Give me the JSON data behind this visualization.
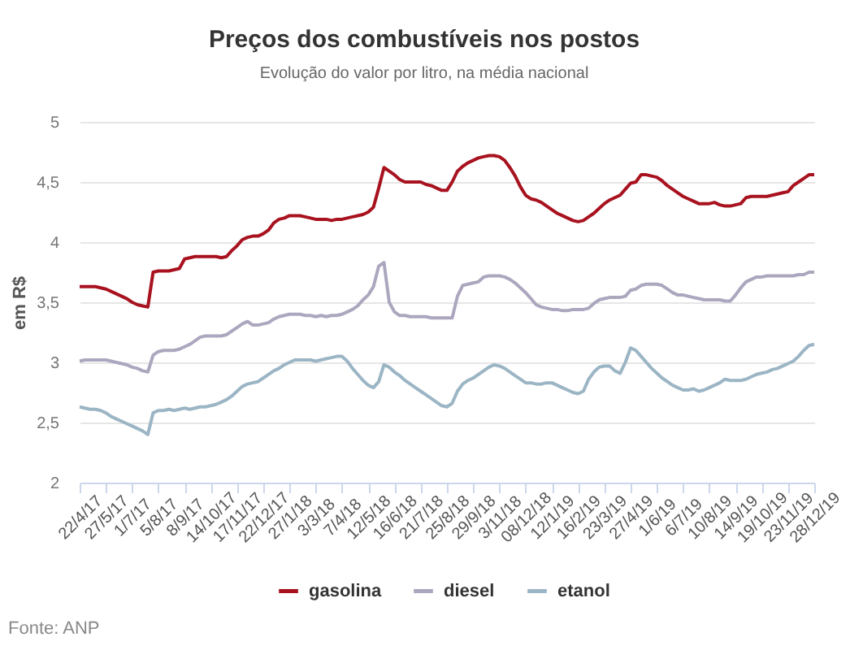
{
  "chart_data": {
    "type": "line",
    "title": "Preços dos combustíveis nos postos",
    "subtitle": "Evolução do valor por litro, na média nacional",
    "ylabel": "em R$",
    "annotations": [
      "Fonte: ANP"
    ],
    "categories": [
      "22/4/17",
      null,
      null,
      null,
      null,
      "27/5/17",
      null,
      null,
      null,
      null,
      "1/7/17",
      null,
      null,
      null,
      null,
      "5/8/17",
      null,
      null,
      null,
      null,
      "8/9/17",
      null,
      null,
      null,
      null,
      "14/10/17",
      null,
      null,
      null,
      null,
      "17/11/17",
      null,
      null,
      null,
      null,
      "22/12/17",
      null,
      null,
      null,
      null,
      "27/1/18",
      null,
      null,
      null,
      null,
      "3/3/18",
      null,
      null,
      null,
      null,
      "7/4/18",
      null,
      null,
      null,
      null,
      "12/5/18",
      null,
      null,
      null,
      null,
      "16/6/18",
      null,
      null,
      null,
      null,
      "21/7/18",
      null,
      null,
      null,
      null,
      "25/8/18",
      null,
      null,
      null,
      null,
      "29/9/18",
      null,
      null,
      null,
      null,
      "3/11/18",
      null,
      null,
      null,
      null,
      "08/12/18",
      null,
      null,
      null,
      null,
      "12/1/19",
      null,
      null,
      null,
      null,
      "16/2/19",
      null,
      null,
      null,
      null,
      "23/3/19",
      null,
      null,
      null,
      null,
      "27/4/19",
      null,
      null,
      null,
      null,
      "1/6/19",
      null,
      null,
      null,
      null,
      "6/7/19",
      null,
      null,
      null,
      null,
      "10/8/19",
      null,
      null,
      null,
      null,
      "14/9/19",
      null,
      null,
      null,
      null,
      "19/10/19",
      null,
      null,
      null,
      null,
      "23/11/19",
      null,
      null,
      null,
      null,
      "28/12/19"
    ],
    "series": [
      {
        "name": "gasolina",
        "color": "#a8121f",
        "values": [
          3.63,
          3.63,
          3.63,
          3.63,
          3.62,
          3.61,
          3.59,
          3.57,
          3.55,
          3.53,
          3.5,
          3.48,
          3.47,
          3.46,
          3.75,
          3.76,
          3.76,
          3.76,
          3.77,
          3.78,
          3.86,
          3.87,
          3.88,
          3.88,
          3.88,
          3.88,
          3.88,
          3.87,
          3.88,
          3.93,
          3.97,
          4.02,
          4.04,
          4.05,
          4.05,
          4.07,
          4.1,
          4.16,
          4.19,
          4.2,
          4.22,
          4.22,
          4.22,
          4.21,
          4.2,
          4.19,
          4.19,
          4.19,
          4.18,
          4.19,
          4.19,
          4.2,
          4.21,
          4.22,
          4.23,
          4.25,
          4.29,
          4.45,
          4.62,
          4.59,
          4.56,
          4.52,
          4.5,
          4.5,
          4.5,
          4.5,
          4.48,
          4.47,
          4.45,
          4.43,
          4.43,
          4.5,
          4.59,
          4.63,
          4.66,
          4.68,
          4.7,
          4.71,
          4.72,
          4.72,
          4.71,
          4.68,
          4.62,
          4.55,
          4.46,
          4.39,
          4.36,
          4.35,
          4.33,
          4.3,
          4.27,
          4.24,
          4.22,
          4.2,
          4.18,
          4.17,
          4.18,
          4.21,
          4.24,
          4.28,
          4.32,
          4.35,
          4.37,
          4.39,
          4.44,
          4.49,
          4.5,
          4.56,
          4.56,
          4.55,
          4.54,
          4.51,
          4.47,
          4.44,
          4.41,
          4.38,
          4.36,
          4.34,
          4.32,
          4.32,
          4.32,
          4.33,
          4.31,
          4.3,
          4.3,
          4.31,
          4.32,
          4.37,
          4.38,
          4.38,
          4.38,
          4.38,
          4.39,
          4.4,
          4.41,
          4.42,
          4.47,
          4.5,
          4.53,
          4.56,
          4.56
        ]
      },
      {
        "name": "diesel",
        "color": "#aca6be",
        "values": [
          3.01,
          3.02,
          3.02,
          3.02,
          3.02,
          3.02,
          3.01,
          3.0,
          2.99,
          2.98,
          2.96,
          2.95,
          2.93,
          2.92,
          3.06,
          3.09,
          3.1,
          3.1,
          3.1,
          3.11,
          3.13,
          3.15,
          3.18,
          3.21,
          3.22,
          3.22,
          3.22,
          3.22,
          3.23,
          3.26,
          3.29,
          3.32,
          3.34,
          3.31,
          3.31,
          3.32,
          3.33,
          3.36,
          3.38,
          3.39,
          3.4,
          3.4,
          3.4,
          3.39,
          3.39,
          3.38,
          3.39,
          3.38,
          3.39,
          3.39,
          3.4,
          3.42,
          3.44,
          3.47,
          3.52,
          3.56,
          3.63,
          3.8,
          3.83,
          3.5,
          3.42,
          3.39,
          3.39,
          3.38,
          3.38,
          3.38,
          3.38,
          3.37,
          3.37,
          3.37,
          3.37,
          3.37,
          3.55,
          3.64,
          3.65,
          3.66,
          3.67,
          3.71,
          3.72,
          3.72,
          3.72,
          3.71,
          3.69,
          3.66,
          3.62,
          3.58,
          3.53,
          3.48,
          3.46,
          3.45,
          3.44,
          3.44,
          3.43,
          3.43,
          3.44,
          3.44,
          3.44,
          3.45,
          3.49,
          3.52,
          3.53,
          3.54,
          3.54,
          3.54,
          3.55,
          3.6,
          3.61,
          3.64,
          3.65,
          3.65,
          3.65,
          3.64,
          3.61,
          3.58,
          3.56,
          3.56,
          3.55,
          3.54,
          3.53,
          3.52,
          3.52,
          3.52,
          3.52,
          3.51,
          3.51,
          3.56,
          3.62,
          3.67,
          3.69,
          3.71,
          3.71,
          3.72,
          3.72,
          3.72,
          3.72,
          3.72,
          3.72,
          3.73,
          3.73,
          3.75,
          3.75
        ]
      },
      {
        "name": "etanol",
        "color": "#9bb5c5",
        "values": [
          2.63,
          2.62,
          2.61,
          2.61,
          2.6,
          2.58,
          2.55,
          2.53,
          2.51,
          2.49,
          2.47,
          2.45,
          2.43,
          2.4,
          2.58,
          2.6,
          2.6,
          2.61,
          2.6,
          2.61,
          2.62,
          2.61,
          2.62,
          2.63,
          2.63,
          2.64,
          2.65,
          2.67,
          2.69,
          2.72,
          2.76,
          2.8,
          2.82,
          2.83,
          2.84,
          2.87,
          2.9,
          2.93,
          2.95,
          2.98,
          3.0,
          3.02,
          3.02,
          3.02,
          3.02,
          3.01,
          3.02,
          3.03,
          3.04,
          3.05,
          3.05,
          3.01,
          2.95,
          2.9,
          2.85,
          2.81,
          2.79,
          2.84,
          2.98,
          2.96,
          2.92,
          2.89,
          2.85,
          2.82,
          2.79,
          2.76,
          2.73,
          2.7,
          2.67,
          2.64,
          2.63,
          2.66,
          2.76,
          2.82,
          2.85,
          2.87,
          2.9,
          2.93,
          2.96,
          2.98,
          2.97,
          2.95,
          2.92,
          2.89,
          2.86,
          2.83,
          2.83,
          2.82,
          2.82,
          2.83,
          2.83,
          2.81,
          2.79,
          2.77,
          2.75,
          2.74,
          2.76,
          2.86,
          2.92,
          2.96,
          2.97,
          2.97,
          2.93,
          2.91,
          3.0,
          3.12,
          3.1,
          3.05,
          3.0,
          2.95,
          2.91,
          2.87,
          2.84,
          2.81,
          2.79,
          2.77,
          2.77,
          2.78,
          2.76,
          2.77,
          2.79,
          2.81,
          2.83,
          2.86,
          2.85,
          2.85,
          2.85,
          2.86,
          2.88,
          2.9,
          2.91,
          2.92,
          2.94,
          2.95,
          2.97,
          2.99,
          3.01,
          3.05,
          3.1,
          3.14,
          3.15
        ]
      }
    ],
    "ylim": [
      2,
      5
    ],
    "yticks": [
      2,
      {
        "value": 2.5,
        "label": "2,5"
      },
      3,
      {
        "value": 3.5,
        "label": "3,5"
      },
      4,
      {
        "value": 4.5,
        "label": "4,5"
      },
      5
    ],
    "grid": "y",
    "legend": "bottom"
  }
}
